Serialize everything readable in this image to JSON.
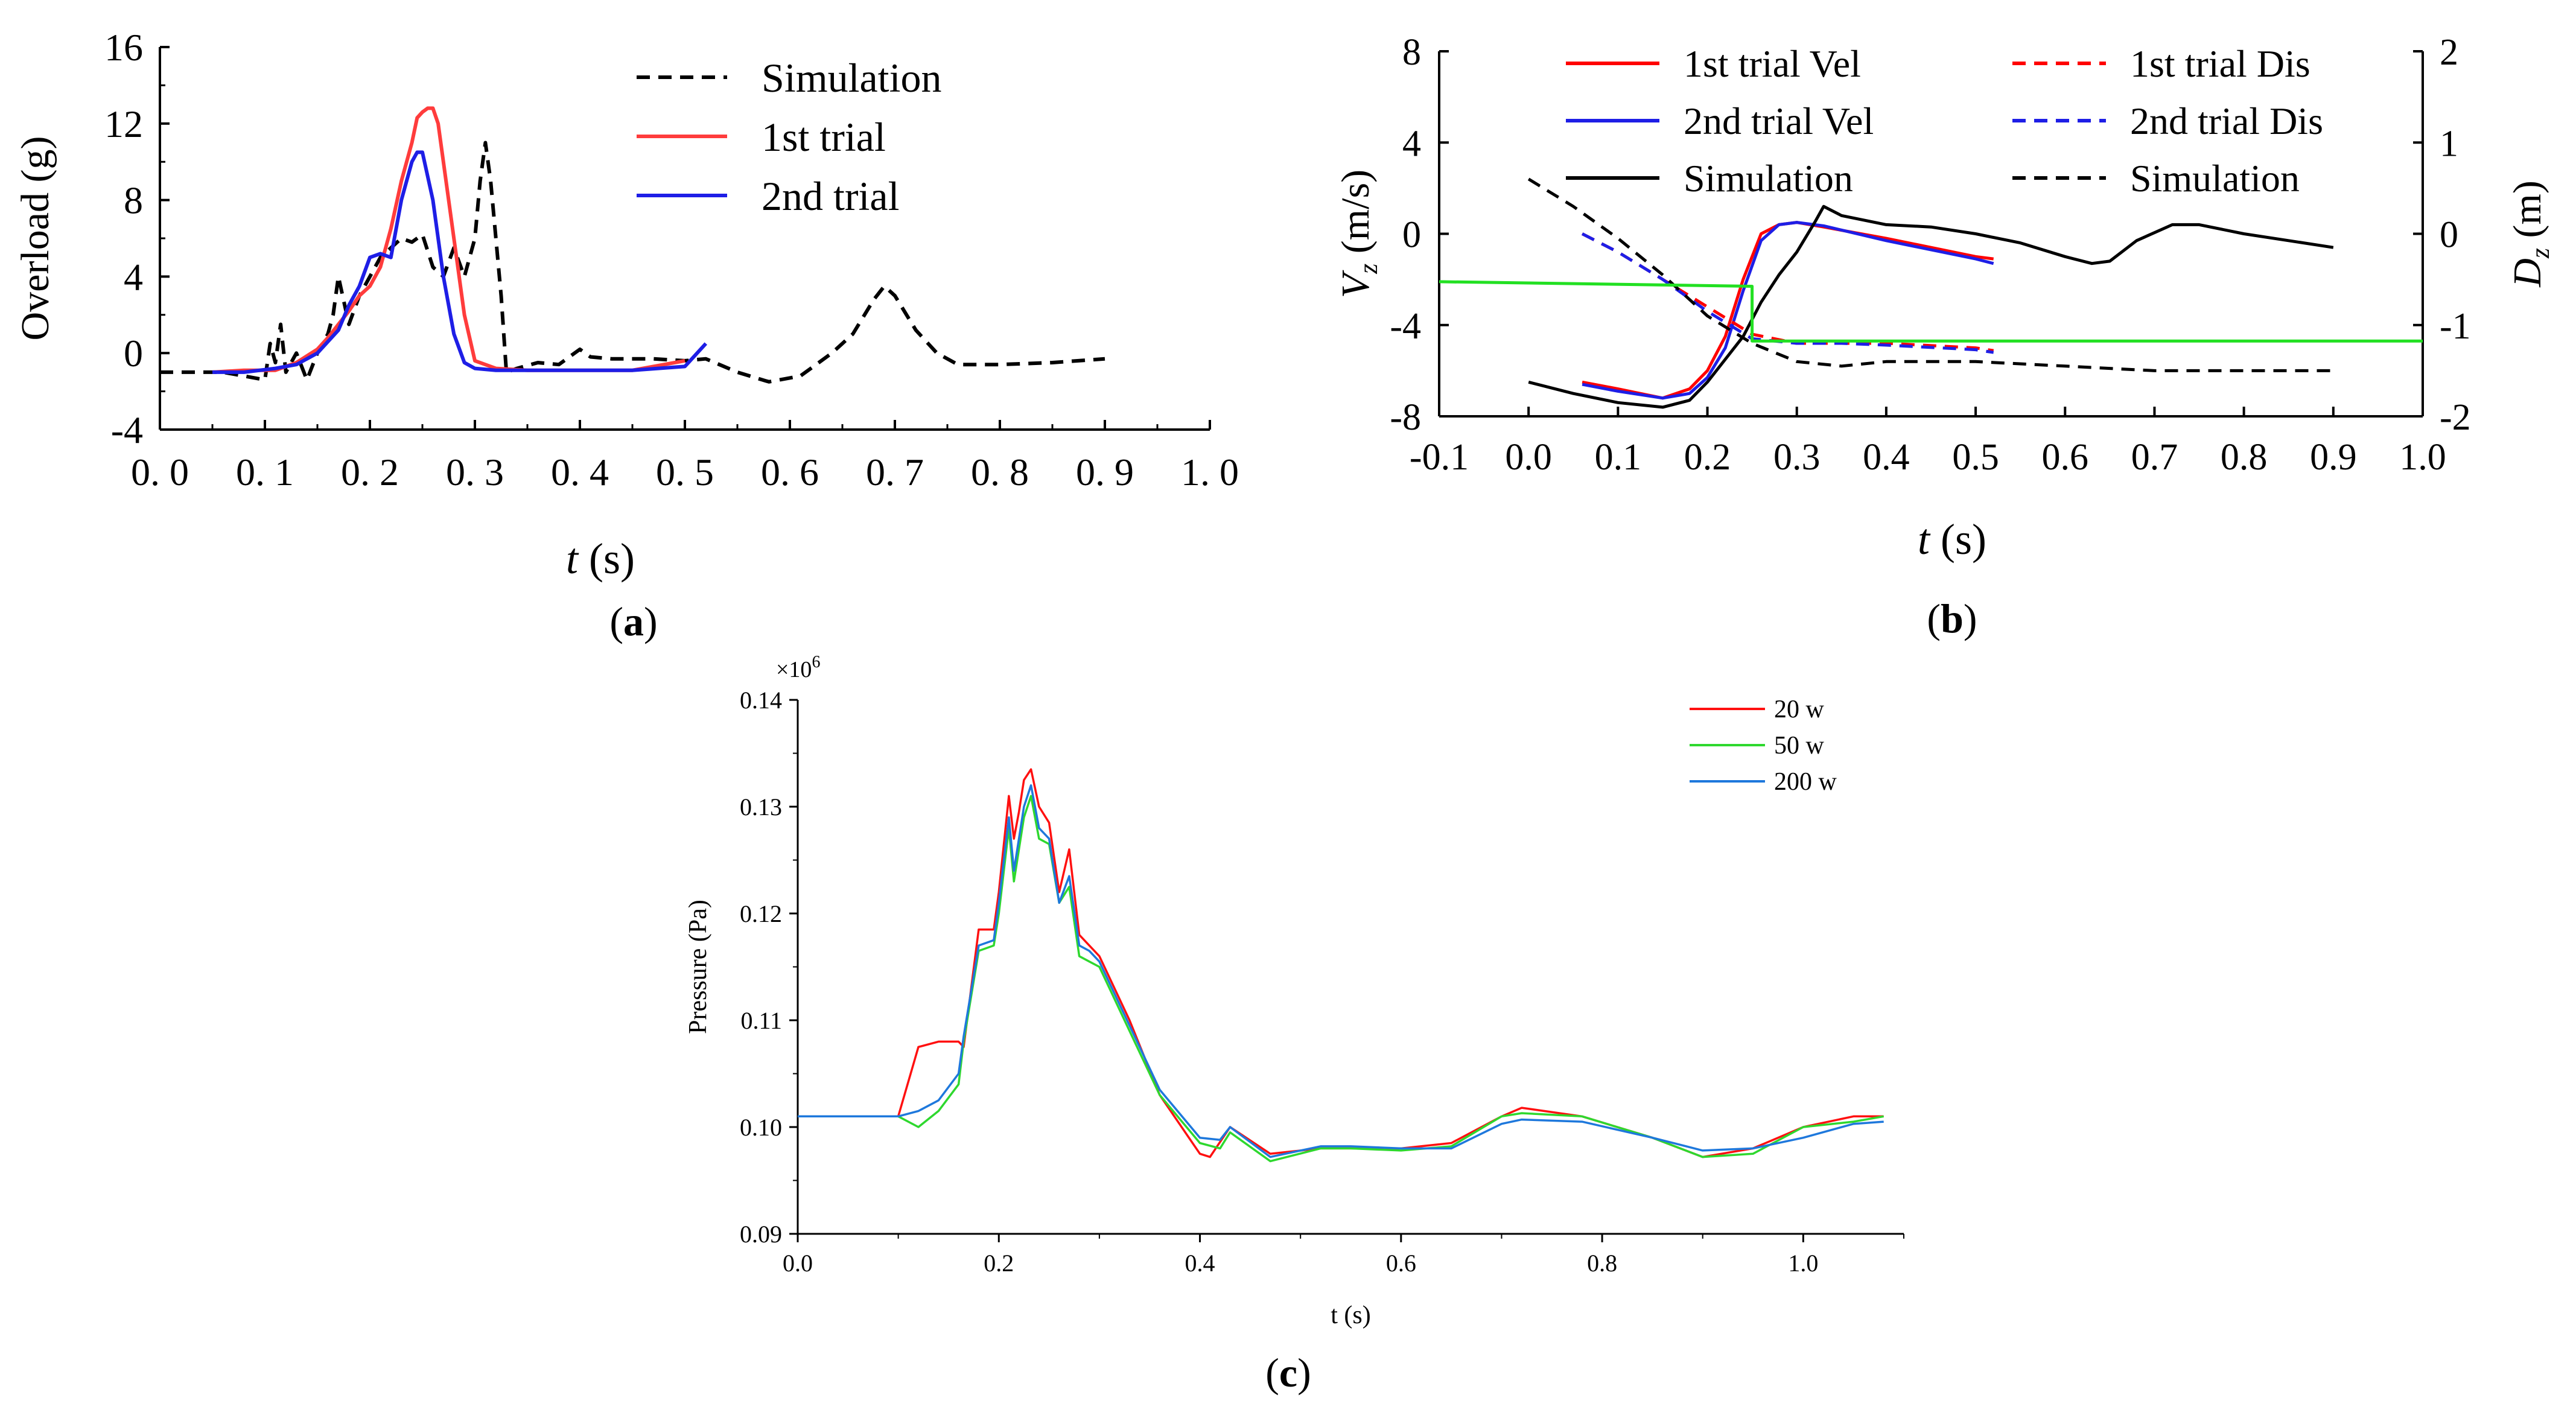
{
  "chart_data": [
    {
      "id": "a",
      "type": "line",
      "panel_label": "a",
      "xlabel": "t",
      "xunit": " (s)",
      "ylabel": "Overload (g)",
      "xlim": [
        0.0,
        1.0
      ],
      "ylim": [
        -4,
        16
      ],
      "xticks": [
        "0. 0",
        "0. 1",
        "0. 2",
        "0. 3",
        "0. 4",
        "0. 5",
        "0. 6",
        "0. 7",
        "0. 8",
        "0. 9",
        "1. 0"
      ],
      "yticks": [
        "-4",
        "0",
        "4",
        "8",
        "12",
        "16"
      ],
      "legend_position": "top-right",
      "series": [
        {
          "name": "Simulation",
          "color": "#000000",
          "dash": "dashed",
          "x": [
            0.0,
            0.03,
            0.06,
            0.08,
            0.1,
            0.105,
            0.11,
            0.115,
            0.12,
            0.13,
            0.14,
            0.15,
            0.16,
            0.165,
            0.17,
            0.18,
            0.19,
            0.2,
            0.21,
            0.22,
            0.23,
            0.24,
            0.25,
            0.26,
            0.27,
            0.28,
            0.29,
            0.3,
            0.305,
            0.31,
            0.315,
            0.32,
            0.325,
            0.33,
            0.34,
            0.36,
            0.38,
            0.4,
            0.41,
            0.43,
            0.45,
            0.47,
            0.5,
            0.52,
            0.55,
            0.58,
            0.61,
            0.64,
            0.66,
            0.68,
            0.69,
            0.7,
            0.72,
            0.74,
            0.76,
            0.8,
            0.85,
            0.9
          ],
          "y": [
            -1,
            -1,
            -1,
            -1.2,
            -1.4,
            0.5,
            -0.5,
            1.5,
            -1,
            0,
            -1.4,
            0,
            1,
            2,
            4,
            1.5,
            3,
            4,
            5,
            5.5,
            6,
            5.8,
            6.2,
            4.5,
            4,
            5.5,
            4,
            6,
            9,
            11,
            9,
            6,
            3,
            -1,
            -0.8,
            -0.5,
            -0.6,
            0.2,
            -0.2,
            -0.3,
            -0.3,
            -0.3,
            -0.4,
            -0.3,
            -1,
            -1.5,
            -1.2,
            0,
            1,
            2.8,
            3.5,
            3,
            1.2,
            0,
            -0.6,
            -0.6,
            -0.5,
            -0.3
          ]
        },
        {
          "name": "1st trial",
          "color": "#ff3c3c",
          "dash": "solid",
          "x": [
            0.05,
            0.08,
            0.11,
            0.13,
            0.15,
            0.16,
            0.17,
            0.18,
            0.19,
            0.2,
            0.21,
            0.22,
            0.23,
            0.24,
            0.245,
            0.25,
            0.255,
            0.26,
            0.265,
            0.27,
            0.28,
            0.29,
            0.3,
            0.32,
            0.35,
            0.4,
            0.45,
            0.5
          ],
          "y": [
            -1,
            -0.9,
            -0.9,
            -0.5,
            0.2,
            0.8,
            1.5,
            2.2,
            3,
            3.5,
            4.5,
            6.5,
            9,
            11,
            12.3,
            12.6,
            12.8,
            12.8,
            12,
            10,
            6,
            2,
            -0.4,
            -0.8,
            -0.9,
            -0.9,
            -0.9,
            -0.4
          ]
        },
        {
          "name": "2nd trial",
          "color": "#1e1ee6",
          "dash": "solid",
          "x": [
            0.05,
            0.08,
            0.11,
            0.13,
            0.15,
            0.17,
            0.18,
            0.19,
            0.2,
            0.21,
            0.22,
            0.23,
            0.24,
            0.245,
            0.25,
            0.26,
            0.27,
            0.28,
            0.29,
            0.3,
            0.32,
            0.35,
            0.4,
            0.45,
            0.5,
            0.52
          ],
          "y": [
            -1,
            -1,
            -0.8,
            -0.6,
            0,
            1.2,
            2.5,
            3.5,
            5,
            5.2,
            5,
            8,
            10,
            10.5,
            10.5,
            8,
            4,
            1,
            -0.5,
            -0.8,
            -0.9,
            -0.9,
            -0.9,
            -0.9,
            -0.7,
            0.5
          ]
        }
      ]
    },
    {
      "id": "b",
      "type": "line",
      "panel_label": "b",
      "xlabel": "t",
      "xunit": " (s)",
      "ylabel_left": "V",
      "ylabel_left_sub": "z",
      "ylabel_left_unit": " (m/s)",
      "ylabel_right": "D",
      "ylabel_right_sub": "z",
      "ylabel_right_unit": " (m)",
      "xlim": [
        -0.1,
        1.0
      ],
      "ylim_left": [
        -8,
        8
      ],
      "ylim_right": [
        -2,
        2
      ],
      "xticks": [
        "-0.1",
        "0.0",
        "0.1",
        "0.2",
        "0.3",
        "0.4",
        "0.5",
        "0.6",
        "0.7",
        "0.8",
        "0.9",
        "1.0"
      ],
      "yticks_left": [
        "-8",
        "-4",
        "0",
        "4",
        "8"
      ],
      "yticks_right": [
        "-2",
        "-1",
        "0",
        "1",
        "2"
      ],
      "legend_position": "top",
      "series": [
        {
          "name": "1st trial Vel",
          "color": "#ff0000",
          "dash": "solid",
          "axis": "left",
          "x": [
            0.06,
            0.1,
            0.15,
            0.18,
            0.2,
            0.22,
            0.24,
            0.26,
            0.28,
            0.3,
            0.33,
            0.4,
            0.5,
            0.52
          ],
          "y": [
            -6.5,
            -6.8,
            -7.2,
            -6.8,
            -6,
            -4.5,
            -2,
            0,
            0.4,
            0.5,
            0.3,
            -0.2,
            -1,
            -1.1
          ]
        },
        {
          "name": "2nd trial Vel",
          "color": "#1e1ee6",
          "dash": "solid",
          "axis": "left",
          "x": [
            0.06,
            0.1,
            0.15,
            0.18,
            0.2,
            0.22,
            0.24,
            0.26,
            0.28,
            0.3,
            0.33,
            0.4,
            0.5,
            0.52
          ],
          "y": [
            -6.6,
            -6.9,
            -7.2,
            -7,
            -6.3,
            -5,
            -2.5,
            -0.3,
            0.4,
            0.5,
            0.35,
            -0.3,
            -1.1,
            -1.3
          ]
        },
        {
          "name": "Simulation",
          "color": "#000000",
          "dash": "solid",
          "axis": "left",
          "x": [
            0.0,
            0.05,
            0.1,
            0.15,
            0.18,
            0.2,
            0.22,
            0.24,
            0.26,
            0.28,
            0.3,
            0.32,
            0.33,
            0.35,
            0.4,
            0.45,
            0.5,
            0.55,
            0.6,
            0.63,
            0.65,
            0.68,
            0.72,
            0.75,
            0.8,
            0.85,
            0.9
          ],
          "y": [
            -6.5,
            -7,
            -7.4,
            -7.6,
            -7.3,
            -6.5,
            -5.5,
            -4.5,
            -3,
            -1.8,
            -0.8,
            0.5,
            1.2,
            0.8,
            0.4,
            0.3,
            0,
            -0.4,
            -1,
            -1.3,
            -1.2,
            -0.3,
            0.4,
            0.4,
            0,
            -0.3,
            -0.6
          ]
        },
        {
          "name": "1st trial Dis",
          "color": "#ff0000",
          "dash": "dashed",
          "axis": "right",
          "x": [
            0.06,
            0.1,
            0.15,
            0.2,
            0.25,
            0.3,
            0.35,
            0.4,
            0.5,
            0.52
          ],
          "y": [
            0.0,
            -0.2,
            -0.5,
            -0.8,
            -1.1,
            -1.2,
            -1.2,
            -1.2,
            -1.25,
            -1.28
          ]
        },
        {
          "name": "2nd trial Dis",
          "color": "#1e1ee6",
          "dash": "dashed",
          "axis": "right",
          "x": [
            0.06,
            0.1,
            0.15,
            0.2,
            0.25,
            0.3,
            0.35,
            0.4,
            0.5,
            0.52
          ],
          "y": [
            0.0,
            -0.2,
            -0.5,
            -0.85,
            -1.15,
            -1.2,
            -1.2,
            -1.22,
            -1.27,
            -1.3
          ]
        },
        {
          "name": "Simulation",
          "color": "#000000",
          "dash": "dashed",
          "axis": "right",
          "x": [
            0.0,
            0.05,
            0.1,
            0.15,
            0.2,
            0.25,
            0.3,
            0.35,
            0.4,
            0.5,
            0.6,
            0.7,
            0.8,
            0.9
          ],
          "y": [
            0.6,
            0.3,
            -0.05,
            -0.45,
            -0.9,
            -1.2,
            -1.4,
            -1.45,
            -1.4,
            -1.4,
            -1.45,
            -1.5,
            -1.5,
            -1.5
          ]
        },
        {
          "name": "",
          "color": "#22e022",
          "dash": "solid",
          "axis": "left",
          "legend": false,
          "x": [
            -0.1,
            0.25,
            0.25,
            1.0
          ],
          "y": [
            -2.1,
            -2.3,
            -4.7,
            -4.7
          ]
        }
      ]
    },
    {
      "id": "c",
      "type": "line",
      "panel_label": "c",
      "xlabel": "t (s)",
      "ylabel": "Pressure (Pa)",
      "multiplier": "×10",
      "multiplier_exp": "6",
      "xlim": [
        0.0,
        1.1
      ],
      "ylim": [
        0.09,
        0.14
      ],
      "xticks": [
        "0.0",
        "0.2",
        "0.4",
        "0.6",
        "0.8",
        "1.0"
      ],
      "yticks": [
        "0.09",
        "0.10",
        "0.11",
        "0.12",
        "0.13",
        "0.14"
      ],
      "legend_position": "top-right",
      "series": [
        {
          "name": "20 w",
          "color": "#ff1010",
          "dash": "solid",
          "x": [
            0.0,
            0.1,
            0.12,
            0.14,
            0.16,
            0.165,
            0.18,
            0.195,
            0.2,
            0.21,
            0.215,
            0.22,
            0.225,
            0.232,
            0.24,
            0.25,
            0.26,
            0.27,
            0.28,
            0.29,
            0.3,
            0.33,
            0.36,
            0.4,
            0.41,
            0.43,
            0.47,
            0.52,
            0.55,
            0.6,
            0.65,
            0.7,
            0.72,
            0.78,
            0.85,
            0.9,
            0.95,
            1.0,
            1.05,
            1.08
          ],
          "y": [
            0.101,
            0.101,
            0.1075,
            0.108,
            0.108,
            0.1075,
            0.1185,
            0.1185,
            0.122,
            0.131,
            0.127,
            0.1295,
            0.1325,
            0.1335,
            0.13,
            0.1285,
            0.122,
            0.126,
            0.118,
            0.117,
            0.116,
            0.11,
            0.103,
            0.0975,
            0.0972,
            0.1,
            0.0975,
            0.098,
            0.098,
            0.098,
            0.0985,
            0.101,
            0.1018,
            0.101,
            0.099,
            0.0972,
            0.098,
            0.1,
            0.101,
            0.101
          ]
        },
        {
          "name": "50 w",
          "color": "#2ed82e",
          "dash": "solid",
          "x": [
            0.0,
            0.1,
            0.12,
            0.14,
            0.16,
            0.165,
            0.18,
            0.195,
            0.2,
            0.21,
            0.215,
            0.22,
            0.225,
            0.232,
            0.24,
            0.25,
            0.26,
            0.27,
            0.28,
            0.29,
            0.3,
            0.33,
            0.36,
            0.4,
            0.42,
            0.43,
            0.47,
            0.52,
            0.55,
            0.6,
            0.65,
            0.7,
            0.72,
            0.78,
            0.85,
            0.9,
            0.95,
            1.0,
            1.05,
            1.08
          ],
          "y": [
            0.101,
            0.101,
            0.1,
            0.1015,
            0.104,
            0.108,
            0.1165,
            0.117,
            0.12,
            0.128,
            0.123,
            0.126,
            0.129,
            0.131,
            0.127,
            0.1265,
            0.121,
            0.1225,
            0.116,
            0.1155,
            0.115,
            0.109,
            0.103,
            0.0985,
            0.098,
            0.0995,
            0.0968,
            0.098,
            0.098,
            0.0978,
            0.0982,
            0.101,
            0.1013,
            0.101,
            0.099,
            0.0972,
            0.0975,
            0.1,
            0.1005,
            0.101
          ]
        },
        {
          "name": "200 w",
          "color": "#1e78dc",
          "dash": "solid",
          "x": [
            0.0,
            0.1,
            0.12,
            0.14,
            0.16,
            0.165,
            0.18,
            0.195,
            0.2,
            0.21,
            0.215,
            0.22,
            0.225,
            0.232,
            0.24,
            0.25,
            0.26,
            0.27,
            0.28,
            0.29,
            0.3,
            0.33,
            0.36,
            0.4,
            0.42,
            0.43,
            0.47,
            0.52,
            0.55,
            0.6,
            0.65,
            0.7,
            0.72,
            0.78,
            0.85,
            0.9,
            0.95,
            1.0,
            1.05,
            1.08
          ],
          "y": [
            0.101,
            0.101,
            0.1015,
            0.1025,
            0.105,
            0.1085,
            0.117,
            0.1175,
            0.121,
            0.129,
            0.124,
            0.127,
            0.13,
            0.132,
            0.128,
            0.127,
            0.121,
            0.1235,
            0.117,
            0.1165,
            0.1155,
            0.1095,
            0.1035,
            0.099,
            0.0988,
            0.1,
            0.0972,
            0.0982,
            0.0982,
            0.098,
            0.098,
            0.1003,
            0.1007,
            0.1005,
            0.099,
            0.0978,
            0.098,
            0.099,
            0.1003,
            0.1005
          ]
        }
      ]
    }
  ]
}
